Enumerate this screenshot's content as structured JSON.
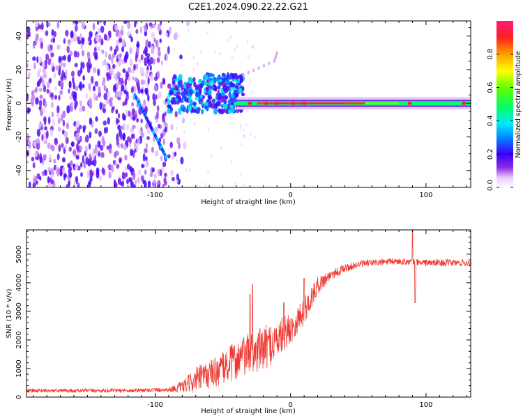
{
  "figure_title": "C2E1.2024.090.22.22.G21",
  "colors": {
    "axis": "#000000",
    "snr_line": "#ee3a32",
    "background": "#ffffff"
  },
  "chart_data": [
    {
      "type": "heatmap",
      "name": "spectrogram",
      "xlabel": "Height of straight line (km)",
      "ylabel": "Frequency (Hz)",
      "xlim": [
        -195,
        133
      ],
      "ylim": [
        -50,
        49
      ],
      "x_ticks": [
        -100,
        0,
        100
      ],
      "y_ticks": [
        -40,
        -20,
        0,
        20,
        40
      ],
      "description_features": {
        "noise_region_x": [
          -195,
          -85
        ],
        "scatter_cluster_x": [
          -90,
          -35
        ],
        "scatter_cluster_freq": [
          -5,
          17
        ],
        "carrier_line_x": [
          -40,
          133
        ],
        "carrier_freq": 0,
        "drift_line": [
          [
            -115,
            5
          ],
          [
            -92,
            -32
          ]
        ],
        "small_streak": [
          [
            -40,
            15
          ],
          [
            -35,
            17
          ],
          [
            -12,
            25
          ],
          [
            -10,
            30
          ]
        ]
      },
      "colorbar": {
        "label": "Normalized spectral amplitude",
        "range": [
          0,
          1
        ],
        "ticks": [
          0.0,
          0.2,
          0.4,
          0.6,
          0.8
        ],
        "tick_labels": [
          "0.0",
          "0.2",
          "0.4",
          "0.6",
          "0.8"
        ]
      }
    },
    {
      "type": "line",
      "name": "snr",
      "xlabel": "Height of straight line (km)",
      "ylabel": "SNR (10 * v/v)",
      "xlim": [
        -195,
        133
      ],
      "ylim": [
        0,
        5850
      ],
      "x_ticks": [
        -100,
        0,
        100
      ],
      "y_ticks": [
        0,
        1000,
        2000,
        3000,
        4000,
        5000
      ],
      "envelope": {
        "x": [
          -195,
          -120,
          -90,
          -80,
          -70,
          -60,
          -50,
          -40,
          -30,
          -20,
          -10,
          0,
          10,
          20,
          30,
          40,
          50,
          60,
          80,
          100,
          133
        ],
        "y_mean": [
          220,
          230,
          260,
          350,
          600,
          800,
          1000,
          1300,
          1500,
          1700,
          2000,
          2400,
          3000,
          3900,
          4300,
          4500,
          4650,
          4700,
          4750,
          4700,
          4700
        ],
        "y_noise": [
          70,
          70,
          80,
          200,
          450,
          500,
          600,
          700,
          750,
          800,
          700,
          550,
          500,
          300,
          200,
          150,
          130,
          120,
          120,
          120,
          130
        ]
      },
      "spikes": [
        {
          "x": -28,
          "y": 3950
        },
        {
          "x": -30,
          "y": 3600
        },
        {
          "x": 10,
          "y": 4150
        },
        {
          "x": -5,
          "y": 3300
        },
        {
          "x": 90,
          "y": 5850
        },
        {
          "x": 92,
          "y": 3300
        }
      ]
    }
  ]
}
